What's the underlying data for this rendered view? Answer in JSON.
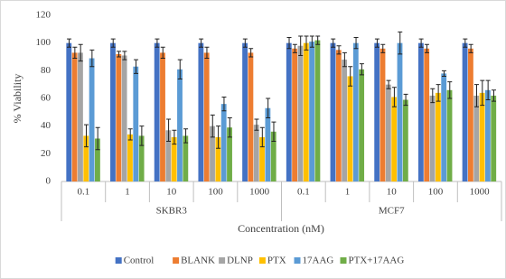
{
  "chart_data": {
    "type": "bar",
    "y_label": "% Viability",
    "x_label": "Concentration (nM)",
    "groups": [
      {
        "name": "SKBR3",
        "categories": [
          "0.1",
          "1",
          "10",
          "100",
          "1000"
        ]
      },
      {
        "name": "MCF7",
        "categories": [
          "0.1",
          "1",
          "10",
          "100",
          "1000"
        ]
      }
    ],
    "series": [
      {
        "name": "Control",
        "color": "#4472c4",
        "values": [
          100,
          100,
          100,
          100,
          100,
          100,
          100,
          100,
          100,
          100
        ],
        "errors": [
          3,
          3,
          3,
          3,
          3,
          4,
          3,
          3,
          3,
          3
        ]
      },
      {
        "name": "BLANK",
        "color": "#ed7d31",
        "values": [
          93,
          92,
          93,
          93,
          93,
          96,
          95,
          96,
          96,
          96
        ],
        "errors": [
          4,
          2,
          4,
          4,
          3,
          3,
          3,
          3,
          3,
          3
        ]
      },
      {
        "name": "DLNP",
        "color": "#a5a5a5",
        "values": [
          93,
          91,
          37,
          40,
          41,
          98,
          88,
          70,
          62,
          62
        ],
        "errors": [
          6,
          3,
          8,
          8,
          4,
          7,
          5,
          3,
          5,
          8
        ]
      },
      {
        "name": "PTX",
        "color": "#ffc000",
        "values": [
          33,
          34,
          32,
          32,
          32,
          100,
          76,
          61,
          64,
          64
        ],
        "errors": [
          8,
          4,
          5,
          8,
          7,
          5,
          7,
          7,
          6,
          9
        ]
      },
      {
        "name": "17AAG",
        "color": "#5b9bd5",
        "values": [
          89,
          83,
          81,
          56,
          53,
          101,
          100,
          100,
          78,
          66
        ],
        "errors": [
          6,
          5,
          7,
          5,
          7,
          4,
          4,
          8,
          2,
          7
        ]
      },
      {
        "name": "PTX+17AAG",
        "color": "#70ad47",
        "values": [
          31,
          33,
          33,
          39,
          36,
          102,
          81,
          59,
          66,
          62
        ],
        "errors": [
          8,
          7,
          5,
          7,
          7,
          3,
          4,
          4,
          6,
          4
        ]
      }
    ],
    "ylim": [
      0,
      120
    ],
    "yticks": [
      0,
      20,
      40,
      60,
      80,
      100,
      120
    ],
    "grid": false,
    "legend": "bottom"
  }
}
